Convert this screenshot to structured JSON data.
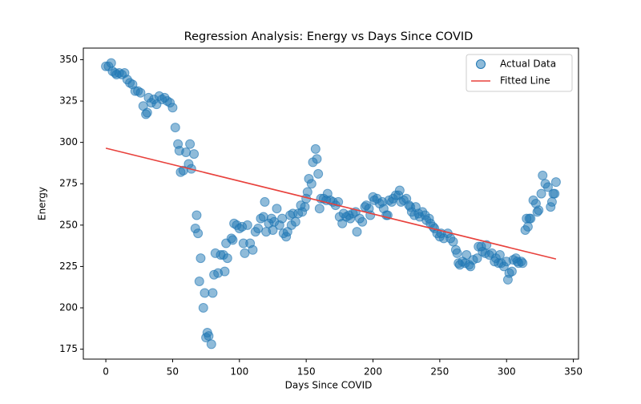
{
  "chart_data": {
    "type": "scatter",
    "title": "Regression Analysis: Energy vs Days Since COVID",
    "x_label": "Days Since COVID",
    "y_label": "Energy",
    "xlim": [
      -16.85,
      353.85
    ],
    "ylim": [
      169,
      357
    ],
    "xticks": [
      0,
      50,
      100,
      150,
      200,
      250,
      300,
      350
    ],
    "yticks": [
      175,
      200,
      225,
      250,
      275,
      300,
      325,
      350
    ],
    "legend": "upper right",
    "series": [
      {
        "name": "Actual Data",
        "kind": "scatter",
        "color": "#1f77b4",
        "x": [
          0,
          2,
          4,
          5,
          7,
          8,
          10,
          12,
          14,
          16,
          18,
          20,
          22,
          24,
          26,
          28,
          30,
          31,
          32,
          34,
          36,
          38,
          40,
          42,
          44,
          46,
          48,
          50,
          52,
          54,
          55,
          56,
          58,
          60,
          62,
          63,
          64,
          66,
          67,
          68,
          69,
          70,
          71,
          73,
          74,
          75,
          76,
          77,
          79,
          80,
          81,
          82,
          84,
          86,
          88,
          89,
          90,
          91,
          94,
          95,
          96,
          98,
          100,
          102,
          103,
          104,
          106,
          108,
          110,
          112,
          114,
          116,
          118,
          119,
          120,
          122,
          124,
          125,
          126,
          128,
          130,
          132,
          133,
          135,
          136,
          138,
          139,
          140,
          142,
          144,
          146,
          147,
          149,
          150,
          151,
          152,
          154,
          155,
          157,
          158,
          159,
          160,
          161,
          163,
          165,
          166,
          168,
          170,
          172,
          174,
          175,
          177,
          178,
          180,
          182,
          183,
          185,
          187,
          188,
          190,
          192,
          194,
          195,
          197,
          198,
          200,
          201,
          203,
          205,
          207,
          208,
          210,
          211,
          212,
          214,
          215,
          217,
          219,
          220,
          221,
          223,
          225,
          227,
          228,
          229,
          231,
          232,
          234,
          235,
          237,
          239,
          240,
          242,
          243,
          245,
          246,
          248,
          250,
          251,
          253,
          256,
          258,
          260,
          262,
          263,
          264,
          265,
          267,
          269,
          270,
          272,
          273,
          275,
          278,
          279,
          281,
          282,
          284,
          285,
          287,
          289,
          291,
          292,
          294,
          295,
          296,
          298,
          300,
          301,
          302,
          304,
          305,
          307,
          308,
          309,
          311,
          312,
          314,
          315,
          316,
          317,
          318,
          320,
          322,
          323,
          324,
          326,
          327,
          329,
          331,
          333,
          334,
          335,
          336,
          337
        ],
        "values": [
          346,
          346,
          348,
          343,
          342,
          341,
          342,
          341,
          342,
          338,
          336,
          335,
          331,
          331,
          330,
          322,
          317,
          318,
          327,
          324,
          326,
          323,
          328,
          326,
          327,
          325,
          324,
          321,
          309,
          299,
          295,
          282,
          283,
          294,
          287,
          299,
          284,
          293,
          248,
          256,
          245,
          216,
          230,
          200,
          209,
          182,
          185,
          183,
          178,
          209,
          220,
          233,
          221,
          232,
          232,
          222,
          239,
          230,
          242,
          241,
          251,
          250,
          248,
          249,
          239,
          233,
          250,
          239,
          235,
          246,
          248,
          254,
          255,
          264,
          246,
          251,
          254,
          247,
          252,
          260,
          250,
          254,
          245,
          243,
          246,
          256,
          250,
          257,
          252,
          257,
          262,
          258,
          261,
          266,
          270,
          278,
          275,
          288,
          296,
          290,
          281,
          260,
          266,
          266,
          265,
          269,
          265,
          264,
          262,
          264,
          255,
          251,
          257,
          255,
          256,
          254,
          257,
          258,
          246,
          254,
          252,
          261,
          262,
          260,
          256,
          267,
          265,
          266,
          263,
          264,
          260,
          256,
          256,
          265,
          264,
          266,
          268,
          268,
          271,
          264,
          265,
          266,
          262,
          261,
          258,
          256,
          261,
          257,
          255,
          258,
          256,
          253,
          254,
          251,
          249,
          248,
          245,
          243,
          245,
          242,
          245,
          242,
          240,
          235,
          233,
          227,
          226,
          228,
          227,
          232,
          226,
          225,
          229,
          230,
          237,
          237,
          234,
          233,
          238,
          232,
          233,
          228,
          230,
          227,
          232,
          227,
          225,
          228,
          217,
          221,
          222,
          229,
          230,
          228,
          227,
          228,
          227,
          247,
          254,
          249,
          254,
          254,
          265,
          263,
          258,
          259,
          269,
          280,
          275,
          273,
          261,
          264,
          269,
          269,
          276
        ]
      },
      {
        "name": "Fitted Line",
        "kind": "line",
        "color": "#e8413c",
        "x": [
          0,
          337
        ],
        "values": [
          296.5,
          229.5
        ]
      }
    ]
  }
}
